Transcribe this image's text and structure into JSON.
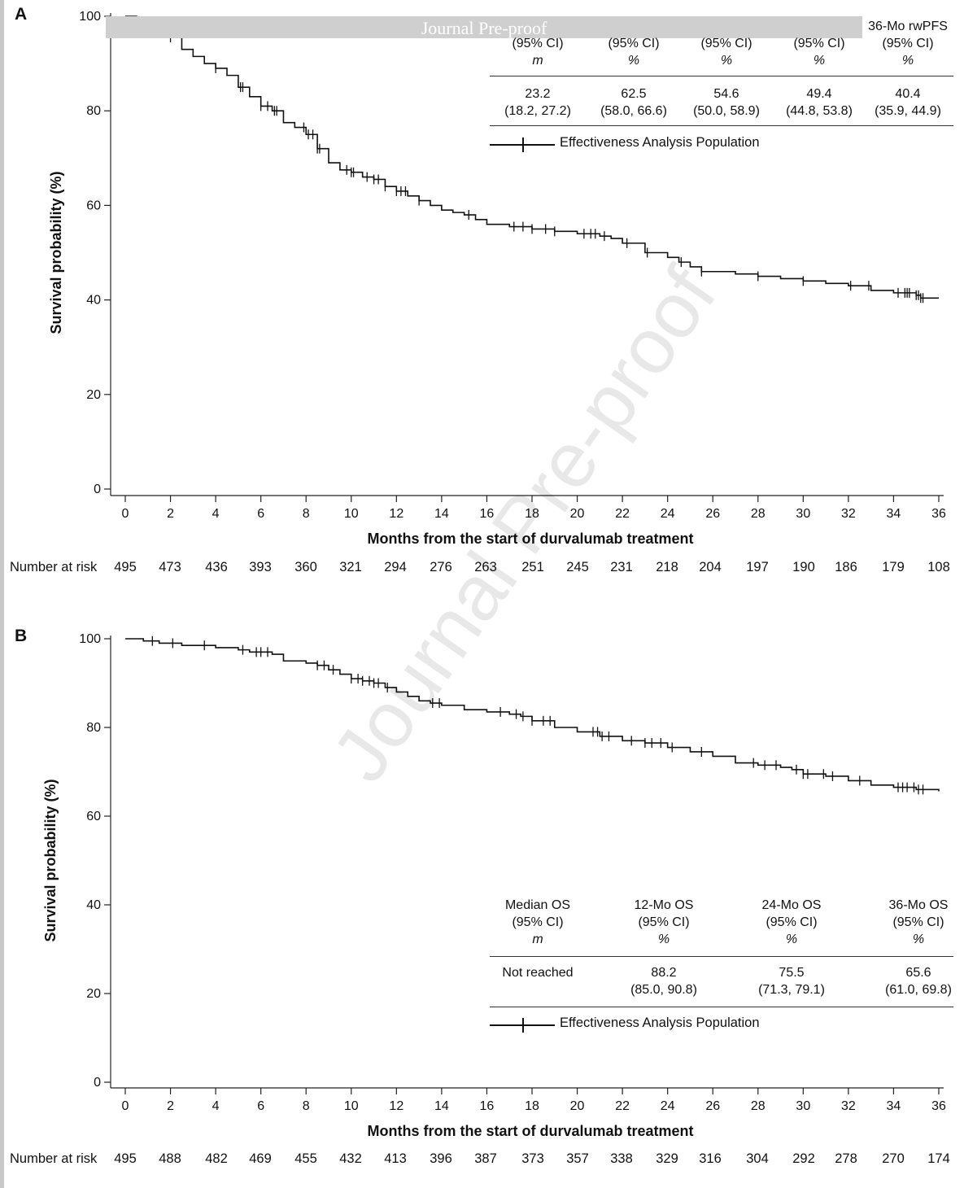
{
  "banner": "Journal Pre-proof",
  "watermark": "Journal Pre-proof",
  "chart_data": [
    {
      "panel": "A",
      "type": "line",
      "title": "",
      "xlabel": "Months from the start of durvalumab treatment",
      "ylabel": "Survival probability (%)",
      "xlim": [
        0,
        36
      ],
      "ylim": [
        0,
        100
      ],
      "xticks": [
        0,
        2,
        4,
        6,
        8,
        10,
        12,
        14,
        16,
        18,
        20,
        22,
        24,
        26,
        28,
        30,
        32,
        34,
        36
      ],
      "yticks": [
        0,
        20,
        40,
        60,
        80,
        100
      ],
      "legend": "Effectiveness Analysis Population",
      "series": [
        {
          "name": "Effectiveness Analysis Population",
          "x": [
            0,
            0.5,
            1,
            1.5,
            2,
            2.5,
            3,
            3.5,
            4,
            4.5,
            5,
            5.5,
            6,
            6.5,
            7,
            7.5,
            8,
            8.5,
            9,
            9.5,
            10,
            10.5,
            11,
            11.5,
            12,
            12.5,
            13,
            13.5,
            14,
            14.5,
            15,
            15.5,
            16,
            17,
            18,
            19,
            20,
            20.5,
            21,
            21.5,
            22,
            23,
            24,
            24.5,
            25,
            25.5,
            26,
            27,
            28,
            29,
            30,
            31,
            32,
            33,
            34,
            35,
            35.2,
            36
          ],
          "y": [
            100,
            99,
            98,
            97,
            95.5,
            93,
            91.5,
            90,
            89,
            87.5,
            85,
            83,
            81,
            80,
            77.5,
            76.5,
            75,
            72,
            69,
            67.5,
            67,
            66,
            65.5,
            64,
            63,
            62,
            61,
            60,
            59,
            58.5,
            58,
            57,
            56,
            55.5,
            55,
            54.5,
            54,
            54,
            53.5,
            53,
            52,
            50,
            49,
            48,
            47,
            46,
            46,
            45.5,
            45,
            44.5,
            44,
            43.5,
            43,
            42,
            41.5,
            41,
            40.4,
            40.4
          ]
        }
      ],
      "censor_x": [
        2,
        4,
        5.1,
        5.2,
        6,
        6.3,
        6.6,
        6.7,
        7.9,
        8.1,
        8.3,
        8.5,
        8.6,
        9.8,
        10.0,
        10.1,
        10.7,
        11.0,
        11.2,
        11.5,
        12.0,
        12.2,
        12.4,
        13,
        15.2,
        17.2,
        17.6,
        18,
        18.6,
        19,
        20.3,
        20.6,
        20.8,
        21.2,
        22.2,
        23.1,
        24.6,
        25.5,
        28,
        30,
        32.1,
        32.9,
        34.2,
        34.5,
        34.6,
        34.7,
        35.0,
        35.1,
        35.2,
        35.3
      ],
      "table": {
        "columns": [
          {
            "h1": "",
            "h2": "(95% CI)",
            "h3": "m",
            "v1": "23.2",
            "v2": "(18.2, 27.2)"
          },
          {
            "h1": "",
            "h2": "(95% CI)",
            "h3": "%",
            "v1": "62.5",
            "v2": "(58.0, 66.6)"
          },
          {
            "h1": "",
            "h2": "(95% CI)",
            "h3": "%",
            "v1": "54.6",
            "v2": "(50.0, 58.9)"
          },
          {
            "h1": "",
            "h2": "(95% CI)",
            "h3": "%",
            "v1": "49.4",
            "v2": "(44.8, 53.8)"
          },
          {
            "h1": "36-Mo rwPFS",
            "h2": "(95% CI)",
            "h3": "%",
            "v1": "40.4",
            "v2": "(35.9, 44.9)"
          }
        ]
      },
      "risk": {
        "label": "Number at risk",
        "x": [
          0,
          2,
          4,
          6,
          8,
          10,
          12,
          14,
          16,
          18,
          20,
          22,
          24,
          26,
          28,
          30,
          32,
          34,
          36
        ],
        "values": [
          495,
          473,
          436,
          393,
          360,
          321,
          294,
          276,
          263,
          251,
          245,
          231,
          218,
          204,
          197,
          190,
          186,
          179,
          108
        ]
      }
    },
    {
      "panel": "B",
      "type": "line",
      "title": "",
      "xlabel": "Months from the start of durvalumab treatment",
      "ylabel": "Survival probability (%)",
      "xlim": [
        0,
        36
      ],
      "ylim": [
        0,
        100
      ],
      "xticks": [
        0,
        2,
        4,
        6,
        8,
        10,
        12,
        14,
        16,
        18,
        20,
        22,
        24,
        26,
        28,
        30,
        32,
        34,
        36
      ],
      "yticks": [
        0,
        20,
        40,
        60,
        80,
        100
      ],
      "legend": "Effectiveness Analysis Population",
      "series": [
        {
          "name": "Effectiveness Analysis Population",
          "x": [
            0,
            0.8,
            1.5,
            2.5,
            4,
            5,
            5.5,
            6.5,
            7,
            8,
            8.5,
            9,
            9.5,
            10,
            10.5,
            11,
            11.5,
            12,
            12.5,
            13,
            13.5,
            14,
            15,
            16,
            17,
            17.5,
            18,
            19,
            20,
            21,
            22,
            23,
            24,
            25,
            26,
            27,
            28,
            29,
            29.5,
            30,
            31,
            32,
            33,
            34,
            35,
            36
          ],
          "y": [
            100,
            99.5,
            99,
            98.5,
            98,
            97.5,
            97,
            96.5,
            95,
            94.5,
            94,
            93,
            92,
            91,
            90.5,
            90,
            89,
            88,
            87,
            86,
            85.5,
            85,
            84,
            83.5,
            83,
            82.5,
            81.5,
            80,
            79,
            78,
            77,
            76.5,
            75.5,
            74.5,
            73.5,
            72,
            71.5,
            71,
            70.5,
            69.5,
            69,
            68,
            67,
            66.5,
            66,
            65.6
          ]
        }
      ],
      "censor_x": [
        1.2,
        2.1,
        3.5,
        5.2,
        5.8,
        6.0,
        6.3,
        8.5,
        8.8,
        9.2,
        10.0,
        10.3,
        10.5,
        10.8,
        11.0,
        11.2,
        11.6,
        13.6,
        13.9,
        16.6,
        17.3,
        17.6,
        18.0,
        18.5,
        18.8,
        20.7,
        20.9,
        21.1,
        21.4,
        22.4,
        23.0,
        23.3,
        23.7,
        24.2,
        25.5,
        27.8,
        28.3,
        28.8,
        29.7,
        30.0,
        30.2,
        30.9,
        31.3,
        32.5,
        34.2,
        34.4,
        34.6,
        34.9,
        35.1,
        35.3
      ],
      "table": {
        "columns": [
          {
            "h1": "Median OS",
            "h2": "(95% CI)",
            "h3": "m",
            "v1": "Not reached",
            "v2": ""
          },
          {
            "h1": "12-Mo OS",
            "h2": "(95% CI)",
            "h3": "%",
            "v1": "88.2",
            "v2": "(85.0, 90.8)"
          },
          {
            "h1": "24-Mo OS",
            "h2": "(95% CI)",
            "h3": "%",
            "v1": "75.5",
            "v2": "(71.3, 79.1)"
          },
          {
            "h1": "36-Mo OS",
            "h2": "(95% CI)",
            "h3": "%",
            "v1": "65.6",
            "v2": "(61.0, 69.8)"
          }
        ]
      },
      "risk": {
        "label": "Number at risk",
        "x": [
          0,
          2,
          4,
          6,
          8,
          10,
          12,
          14,
          16,
          18,
          20,
          22,
          24,
          26,
          28,
          30,
          32,
          34,
          36
        ],
        "values": [
          495,
          488,
          482,
          469,
          455,
          432,
          413,
          396,
          387,
          373,
          357,
          338,
          329,
          316,
          304,
          292,
          278,
          270,
          174
        ]
      }
    }
  ]
}
